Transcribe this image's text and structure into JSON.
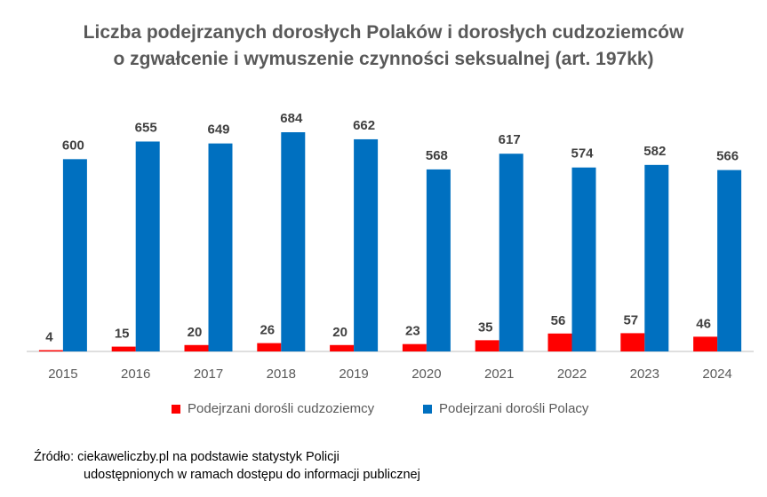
{
  "title": {
    "line1": "Liczba podejrzanych dorosłych Polaków i dorosłych cudzoziemców",
    "line2": "o zgwałcenie i wymuszenie czynności seksualnej (art. 197kk)"
  },
  "colors": {
    "foreigners": "#FF0000",
    "poles": "#0070C0",
    "axis": "#BFBFBF",
    "label_text": "#404040"
  },
  "chart_data": {
    "type": "bar",
    "categories": [
      "2015",
      "2016",
      "2017",
      "2018",
      "2019",
      "2020",
      "2021",
      "2022",
      "2023",
      "2024"
    ],
    "series": [
      {
        "name": "Podejrzani dorośli cudzoziemcy",
        "values": [
          4,
          15,
          20,
          26,
          20,
          23,
          35,
          56,
          57,
          46
        ]
      },
      {
        "name": "Podejrzani dorośli Polacy",
        "values": [
          600,
          655,
          649,
          684,
          662,
          568,
          617,
          574,
          582,
          566
        ]
      }
    ],
    "ylim": [
      0,
      684
    ],
    "grid": false,
    "legend_position": "bottom"
  },
  "legend": {
    "foreigners_label": "Podejrzani dorośli cudzoziemcy",
    "poles_label": "Podejrzani dorośli Polacy"
  },
  "source": {
    "line1": "Źródło: ciekaweliczby.pl na podstawie statystyk Policji",
    "line2": "udostępnionych w ramach dostępu do informacji publicznej"
  }
}
